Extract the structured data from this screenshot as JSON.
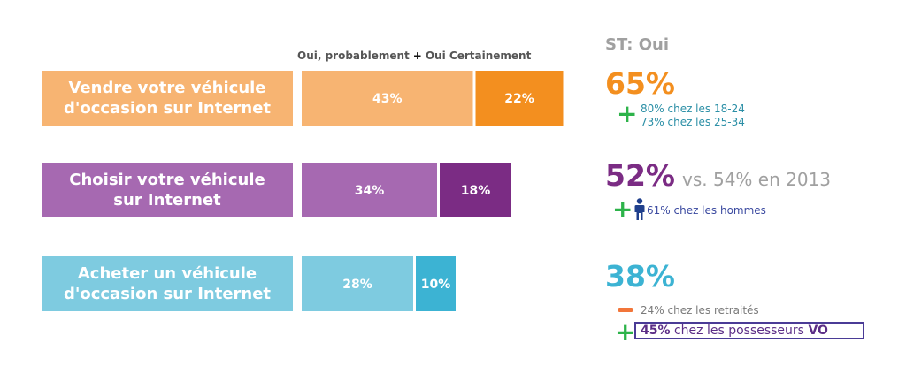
{
  "legend": {
    "series1": "Oui, probablement",
    "plus": "+",
    "series2": "Oui Certainement"
  },
  "chart_data": {
    "type": "bar",
    "orientation": "horizontal",
    "stacked": true,
    "categories": [
      "Vendre votre véhicule d'occasion sur Internet",
      "Choisir votre véhicule sur Internet",
      "Acheter un véhicule d'occasion sur Internet"
    ],
    "category_lines": [
      [
        "Vendre votre véhicule",
        "d'occasion sur Internet"
      ],
      [
        "Choisir votre véhicule",
        "sur Internet"
      ],
      [
        "Acheter un véhicule",
        "d'occasion sur Internet"
      ]
    ],
    "series": [
      {
        "name": "Oui, probablement",
        "values": [
          43,
          34,
          28
        ],
        "labels": [
          "43%",
          "34%",
          "28%"
        ]
      },
      {
        "name": "Oui Certainement",
        "values": [
          22,
          18,
          10
        ],
        "labels": [
          "22%",
          "18%",
          "10%"
        ]
      }
    ],
    "colors": {
      "row1": [
        "#f7b472",
        "#f38f1f"
      ],
      "row2": [
        "#a669b1",
        "#7b2c84"
      ],
      "row3": [
        "#7ecbe0",
        "#3cb3d3"
      ]
    },
    "category_colors": [
      "#f7b472",
      "#a669b1",
      "#7ecbe0"
    ],
    "grid": false
  },
  "summary": {
    "title": "ST: Oui",
    "rows": [
      {
        "value": "65%",
        "color": "#f38f1f",
        "vs": ""
      },
      {
        "value": "52%",
        "color": "#7b2c84",
        "vs": "vs. 54% en 2013"
      },
      {
        "value": "38%",
        "color": "#3cb3d3",
        "vs": ""
      }
    ],
    "notes": {
      "row1_line1": "80% chez les 18-24",
      "row1_line2": "73% chez les 25-34",
      "row2": "61% chez les hommes",
      "row3_minus": "24% chez les retraités",
      "row3_plus_bold": "45%",
      "row3_plus_mid": " chez les possesseurs ",
      "row3_plus_bold2": "VO"
    },
    "colors": {
      "plus": "#2db34a",
      "minus": "#f2763a",
      "note_teal": "#2b8fa6",
      "note_blue": "#3b4aa0",
      "note_gray": "#7a7a7a",
      "person": "#1f3f8c"
    },
    "icons": [
      "plus-icon",
      "person-icon",
      "minus-icon"
    ]
  }
}
